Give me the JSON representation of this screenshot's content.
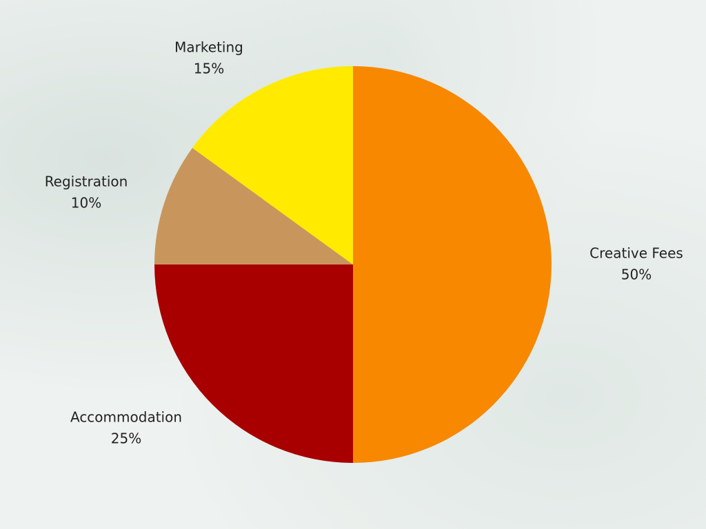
{
  "chart_data": {
    "type": "pie",
    "categories": [
      "Creative Fees",
      "Accommodation",
      "Registration",
      "Marketing"
    ],
    "values": [
      50,
      25,
      10,
      15
    ],
    "value_labels": [
      "50%",
      "25%",
      "10%",
      "15%"
    ],
    "colors": [
      "#f78800",
      "#a80000",
      "#c8965c",
      "#ffea00"
    ]
  }
}
